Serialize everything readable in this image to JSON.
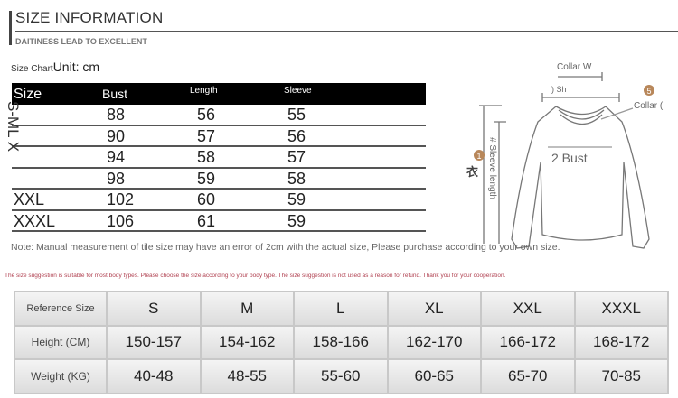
{
  "header": {
    "title": "SIZE INFORMATION",
    "subtitle": "DAITINESS LEAD TO EXCELLENT"
  },
  "size_chart": {
    "label": "Size Chart",
    "unit": "Unit: cm",
    "columns": [
      "Size",
      "Bust",
      "Length",
      "Sleeve"
    ],
    "vertical_size_label": "S-ML X",
    "rows": [
      {
        "size": "",
        "bust": "88",
        "length": "56",
        "sleeve": "55"
      },
      {
        "size": "",
        "bust": "90",
        "length": "57",
        "sleeve": "56"
      },
      {
        "size": "",
        "bust": "94",
        "length": "58",
        "sleeve": "57"
      },
      {
        "size": "",
        "bust": "98",
        "length": "59",
        "sleeve": "58"
      },
      {
        "size": "XXL",
        "bust": "102",
        "length": "60",
        "sleeve": "59"
      },
      {
        "size": "XXXL",
        "bust": "106",
        "length": "61",
        "sleeve": "59"
      }
    ]
  },
  "diagram": {
    "collar_width": "Collar W",
    "shoulder": ") Sh",
    "collar": "Collar (",
    "bust": "2 Bust",
    "sleeve": "# Sleeve length",
    "length_char": "衣",
    "markers": [
      "1",
      "5"
    ],
    "marker_color": "#b8875a"
  },
  "note": "Note: Manual measurement of tile size may have an error of 2cm with the actual size, Please purchase according to your own size.",
  "suggestion": "The size suggestion is suitable for most body types. Please choose the size according to your body type. The size suggestion is not used as a reason for refund. Thank you for your cooperation.",
  "reference": {
    "header": [
      "Reference Size",
      "S",
      "M",
      "L",
      "XL",
      "XXL",
      "XXXL"
    ],
    "height": [
      "Height (CM)",
      "150-157",
      "154-162",
      "158-166",
      "162-170",
      "166-172",
      "168-172"
    ],
    "weight": [
      "Weight (KG)",
      "40-48",
      "48-55",
      "55-60",
      "60-65",
      "65-70",
      "70-85"
    ]
  }
}
